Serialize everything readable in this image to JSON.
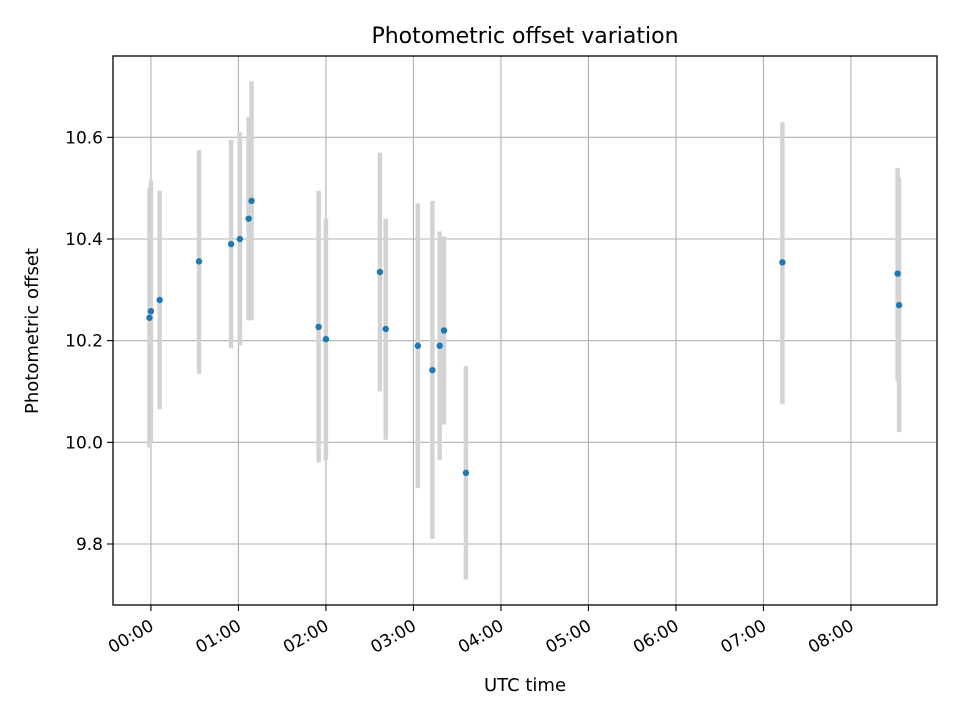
{
  "chart_data": {
    "type": "scatter",
    "title": "Photometric offset variation",
    "xlabel": "UTC time",
    "ylabel": "Photometric offset",
    "x_unit": "time of day (HH:MM, UTC)",
    "xlim": [
      "23:34",
      "08:59"
    ],
    "ylim": [
      9.68,
      10.76
    ],
    "grid": true,
    "x_ticks": [
      "00:00",
      "01:00",
      "02:00",
      "03:00",
      "04:00",
      "05:00",
      "06:00",
      "07:00",
      "08:00"
    ],
    "y_ticks": [
      9.8,
      10.0,
      10.2,
      10.4,
      10.6
    ],
    "y_tick_labels": [
      "9.8",
      "10.0",
      "10.2",
      "10.4",
      "10.6"
    ],
    "colors": {
      "marker": "#1f77b4",
      "errorbar": "#d3d3d3",
      "grid": "#b0b0b0"
    },
    "points": [
      {
        "x": "23:59",
        "y": 10.245,
        "low": 9.99,
        "high": 10.5
      },
      {
        "x": "00:00",
        "y": 10.258,
        "low": 10.0,
        "high": 10.515
      },
      {
        "x": "00:06",
        "y": 10.28,
        "low": 10.065,
        "high": 10.495
      },
      {
        "x": "00:33",
        "y": 10.356,
        "low": 10.135,
        "high": 10.575
      },
      {
        "x": "00:55",
        "y": 10.39,
        "low": 10.185,
        "high": 10.595
      },
      {
        "x": "01:01",
        "y": 10.4,
        "low": 10.19,
        "high": 10.61
      },
      {
        "x": "01:07",
        "y": 10.44,
        "low": 10.24,
        "high": 10.64
      },
      {
        "x": "01:09",
        "y": 10.475,
        "low": 10.24,
        "high": 10.71
      },
      {
        "x": "01:55",
        "y": 10.227,
        "low": 9.96,
        "high": 10.495
      },
      {
        "x": "02:00",
        "y": 10.203,
        "low": 9.965,
        "high": 10.44
      },
      {
        "x": "02:37",
        "y": 10.335,
        "low": 10.1,
        "high": 10.57
      },
      {
        "x": "02:41",
        "y": 10.223,
        "low": 10.005,
        "high": 10.44
      },
      {
        "x": "03:03",
        "y": 10.19,
        "low": 9.91,
        "high": 10.47
      },
      {
        "x": "03:13",
        "y": 10.142,
        "low": 9.81,
        "high": 10.475
      },
      {
        "x": "03:18",
        "y": 10.19,
        "low": 9.965,
        "high": 10.415
      },
      {
        "x": "03:21",
        "y": 10.22,
        "low": 10.035,
        "high": 10.405
      },
      {
        "x": "03:36",
        "y": 9.94,
        "low": 9.73,
        "high": 10.15
      },
      {
        "x": "07:13",
        "y": 10.354,
        "low": 10.075,
        "high": 10.63
      },
      {
        "x": "08:32",
        "y": 10.332,
        "low": 10.12,
        "high": 10.54
      },
      {
        "x": "08:33",
        "y": 10.27,
        "low": 10.02,
        "high": 10.52
      }
    ]
  }
}
